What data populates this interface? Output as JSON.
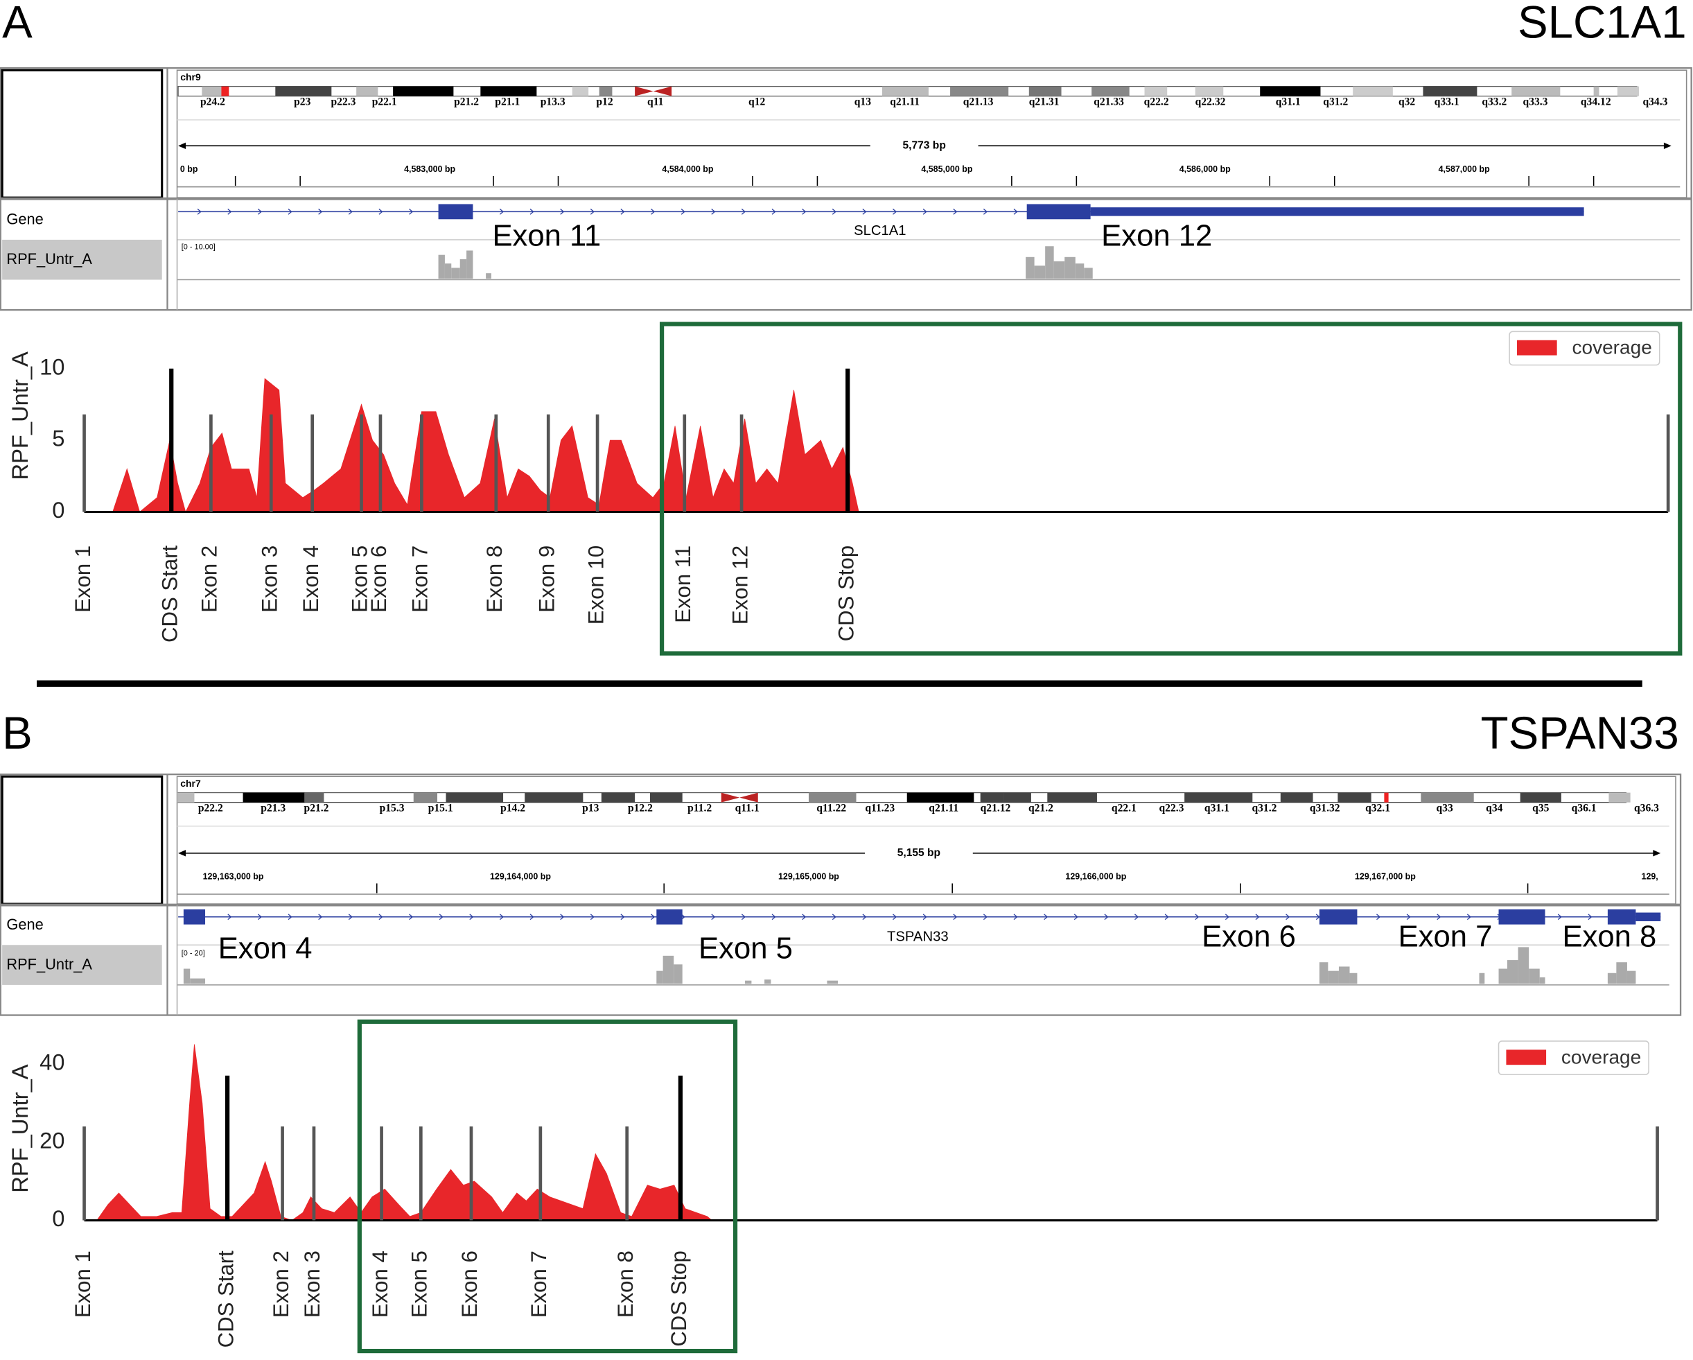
{
  "panels": [
    {
      "label": "A",
      "title": "SLC1A1",
      "igv": {
        "chromosome": "chr9",
        "bands": [
          "p24.2",
          "p23",
          "p22.3",
          "p22.1",
          "p21.2",
          "p21.1",
          "p13.3",
          "p12",
          "q11",
          "q12",
          "q13",
          "q21.11",
          "q21.13",
          "q21.31",
          "q21.33",
          "q22.2",
          "q22.32",
          "q31.1",
          "q31.2",
          "q32",
          "q33.1",
          "q33.2",
          "q33.3",
          "q34.12",
          "q34.3"
        ],
        "span": "5,773 bp",
        "positions": [
          "0 bp",
          "4,583,000 bp",
          "4,584,000 bp",
          "4,585,000 bp",
          "4,586,000 bp",
          "4,587,000 bp"
        ],
        "tracks": [
          "Gene",
          "RPF_Untr_A"
        ],
        "gene_name": "SLC1A1",
        "range": "[0 - 10.00]",
        "exon_labels": [
          "Exon 11",
          "Exon 12"
        ]
      }
    },
    {
      "label": "B",
      "title": "TSPAN33",
      "igv": {
        "chromosome": "chr7",
        "bands": [
          "p22.2",
          "p21.3",
          "p21.2",
          "p15.3",
          "p15.1",
          "p14.2",
          "p13",
          "p12.2",
          "p11.2",
          "q11.1",
          "q11.22",
          "q11.23",
          "q21.11",
          "q21.12",
          "q21.2",
          "q22.1",
          "q22.3",
          "q31.1",
          "q31.2",
          "q31.32",
          "q32.1",
          "q33",
          "q34",
          "q35",
          "q36.1",
          "q36.3"
        ],
        "span": "5,155 bp",
        "positions": [
          "129,163,000 bp",
          "129,164,000 bp",
          "129,165,000 bp",
          "129,166,000 bp",
          "129,167,000 bp",
          "129,"
        ],
        "tracks": [
          "Gene",
          "RPF_Untr_A"
        ],
        "gene_name": "TSPAN33",
        "range": "[0 - 20]",
        "exon_labels": [
          "Exon 4",
          "Exon 5",
          "Exon 6",
          "Exon 7",
          "Exon 8"
        ]
      }
    }
  ],
  "chart_data": [
    {
      "type": "area",
      "ylabel": "RPF_Untr_A",
      "xlim": [
        0,
        100
      ],
      "ylim": [
        0,
        11
      ],
      "yticks": [
        0,
        5,
        10
      ],
      "grid": false,
      "legend": "upper right",
      "series": [
        {
          "name": "coverage",
          "color": "#e8262a",
          "x": [
            0,
            1.8,
            2.7,
            3.5,
            4.6,
            5.4,
            5.9,
            6.4,
            7.3,
            8.0,
            8.7,
            9.3,
            10.4,
            10.9,
            11.4,
            12.3,
            12.7,
            13.8,
            14.5,
            15.1,
            16.2,
            17.5,
            18.2,
            18.9,
            19.6,
            20.4,
            21.3,
            22.2,
            23.0,
            24.0,
            25.0,
            25.9,
            26.7,
            27.4,
            28.1,
            28.8,
            29.4,
            30.1,
            30.8,
            31.8,
            32.5,
            33.2,
            33.9,
            34.9,
            35.9,
            36.6,
            37.3,
            38.0,
            38.9,
            39.7,
            40.4,
            41.0,
            41.7,
            42.4,
            43.1,
            43.8,
            44.8,
            45.5,
            46.5,
            47.2,
            47.9,
            48.5,
            48.9,
            100
          ],
          "values": [
            0,
            0,
            3,
            0,
            1,
            5,
            2,
            0,
            2,
            4.5,
            5.5,
            3,
            3,
            1,
            9.3,
            8.5,
            2,
            1,
            1.5,
            2,
            3,
            7.5,
            5,
            4,
            2,
            0.5,
            7,
            7,
            4,
            1,
            2,
            6.5,
            1,
            3,
            2.5,
            1.5,
            1,
            5,
            6,
            1,
            0.5,
            5,
            5,
            2,
            1,
            2,
            6,
            1,
            6,
            1,
            3,
            2,
            6.5,
            2,
            3,
            2,
            8.5,
            4,
            5,
            3,
            4.5,
            2,
            0,
            0
          ]
        }
      ],
      "markers": [
        {
          "label": "Exon 1",
          "x": 0,
          "height": 6.8,
          "color": "#555555"
        },
        {
          "label": "CDS Start",
          "x": 5.5,
          "height": 10,
          "color": "#000000"
        },
        {
          "label": "Exon 2",
          "x": 8.0,
          "height": 6.8,
          "color": "#555555"
        },
        {
          "label": "Exon 3",
          "x": 11.8,
          "height": 6.8,
          "color": "#555555"
        },
        {
          "label": "Exon 4",
          "x": 14.4,
          "height": 6.8,
          "color": "#555555"
        },
        {
          "label": "Exon 5",
          "x": 17.5,
          "height": 6.8,
          "color": "#555555"
        },
        {
          "label": "Exon 6",
          "x": 18.7,
          "height": 6.8,
          "color": "#555555"
        },
        {
          "label": "Exon 7",
          "x": 21.3,
          "height": 6.8,
          "color": "#555555"
        },
        {
          "label": "Exon 8",
          "x": 26.0,
          "height": 6.8,
          "color": "#555555"
        },
        {
          "label": "Exon 9",
          "x": 29.3,
          "height": 6.8,
          "color": "#555555"
        },
        {
          "label": "Exon 10",
          "x": 32.4,
          "height": 6.8,
          "color": "#555555"
        },
        {
          "label": "Exon 11",
          "x": 37.9,
          "height": 6.8,
          "color": "#555555"
        },
        {
          "label": "Exon 12",
          "x": 41.5,
          "height": 6.8,
          "color": "#555555"
        },
        {
          "label": "CDS Stop",
          "x": 48.2,
          "height": 10,
          "color": "#000000"
        },
        {
          "label": null,
          "x": 100,
          "height": 6.8,
          "color": "#555555"
        }
      ]
    },
    {
      "type": "area",
      "ylabel": "RPF_Untr_A",
      "xlim": [
        0,
        100
      ],
      "ylim": [
        0,
        45
      ],
      "yticks": [
        0,
        20,
        40
      ],
      "grid": false,
      "legend": "upper right",
      "series": [
        {
          "name": "coverage",
          "color": "#e8262a",
          "x": [
            0,
            0.8,
            1.5,
            2.2,
            2.9,
            3.6,
            4.6,
            5.6,
            6.2,
            6.7,
            7.0,
            7.5,
            8.0,
            8.7,
            9.4,
            10.1,
            10.8,
            11.5,
            11.9,
            12.5,
            13.2,
            13.9,
            14.4,
            15.1,
            15.9,
            16.9,
            17.6,
            18.3,
            19.1,
            20.0,
            20.7,
            21.4,
            22.4,
            23.3,
            24.1,
            24.8,
            25.9,
            26.6,
            27.5,
            28.1,
            28.8,
            29.6,
            31.0,
            31.7,
            32.5,
            33.2,
            34.1,
            34.8,
            35.8,
            36.6,
            37.5,
            38.2,
            38.9,
            39.6,
            39.9,
            100
          ],
          "values": [
            0,
            0,
            4,
            7,
            4,
            1,
            1,
            2,
            2,
            30,
            45,
            30,
            3,
            1,
            1,
            4,
            7,
            15,
            10,
            1,
            0,
            2,
            6,
            3,
            2,
            6,
            2,
            6,
            8,
            4,
            1,
            2,
            8,
            13,
            9,
            10,
            6,
            2,
            7,
            5,
            8,
            6,
            4,
            3,
            17,
            12,
            2,
            1,
            9,
            8,
            9,
            3,
            2,
            1,
            0,
            0
          ]
        }
      ],
      "markers": [
        {
          "label": "Exon 1",
          "x": 0,
          "height": 24,
          "color": "#555555"
        },
        {
          "label": "CDS Start",
          "x": 9.1,
          "height": 37,
          "color": "#000000"
        },
        {
          "label": "Exon 2",
          "x": 12.6,
          "height": 24,
          "color": "#555555"
        },
        {
          "label": "Exon 3",
          "x": 14.6,
          "height": 24,
          "color": "#555555"
        },
        {
          "label": "Exon 4",
          "x": 18.9,
          "height": 24,
          "color": "#555555"
        },
        {
          "label": "Exon 5",
          "x": 21.4,
          "height": 24,
          "color": "#555555"
        },
        {
          "label": "Exon 6",
          "x": 24.6,
          "height": 24,
          "color": "#555555"
        },
        {
          "label": "Exon 7",
          "x": 29.0,
          "height": 24,
          "color": "#555555"
        },
        {
          "label": "Exon 8",
          "x": 34.5,
          "height": 24,
          "color": "#555555"
        },
        {
          "label": "CDS Stop",
          "x": 37.9,
          "height": 37,
          "color": "#000000"
        },
        {
          "label": null,
          "x": 100,
          "height": 24,
          "color": "#555555"
        }
      ]
    }
  ]
}
